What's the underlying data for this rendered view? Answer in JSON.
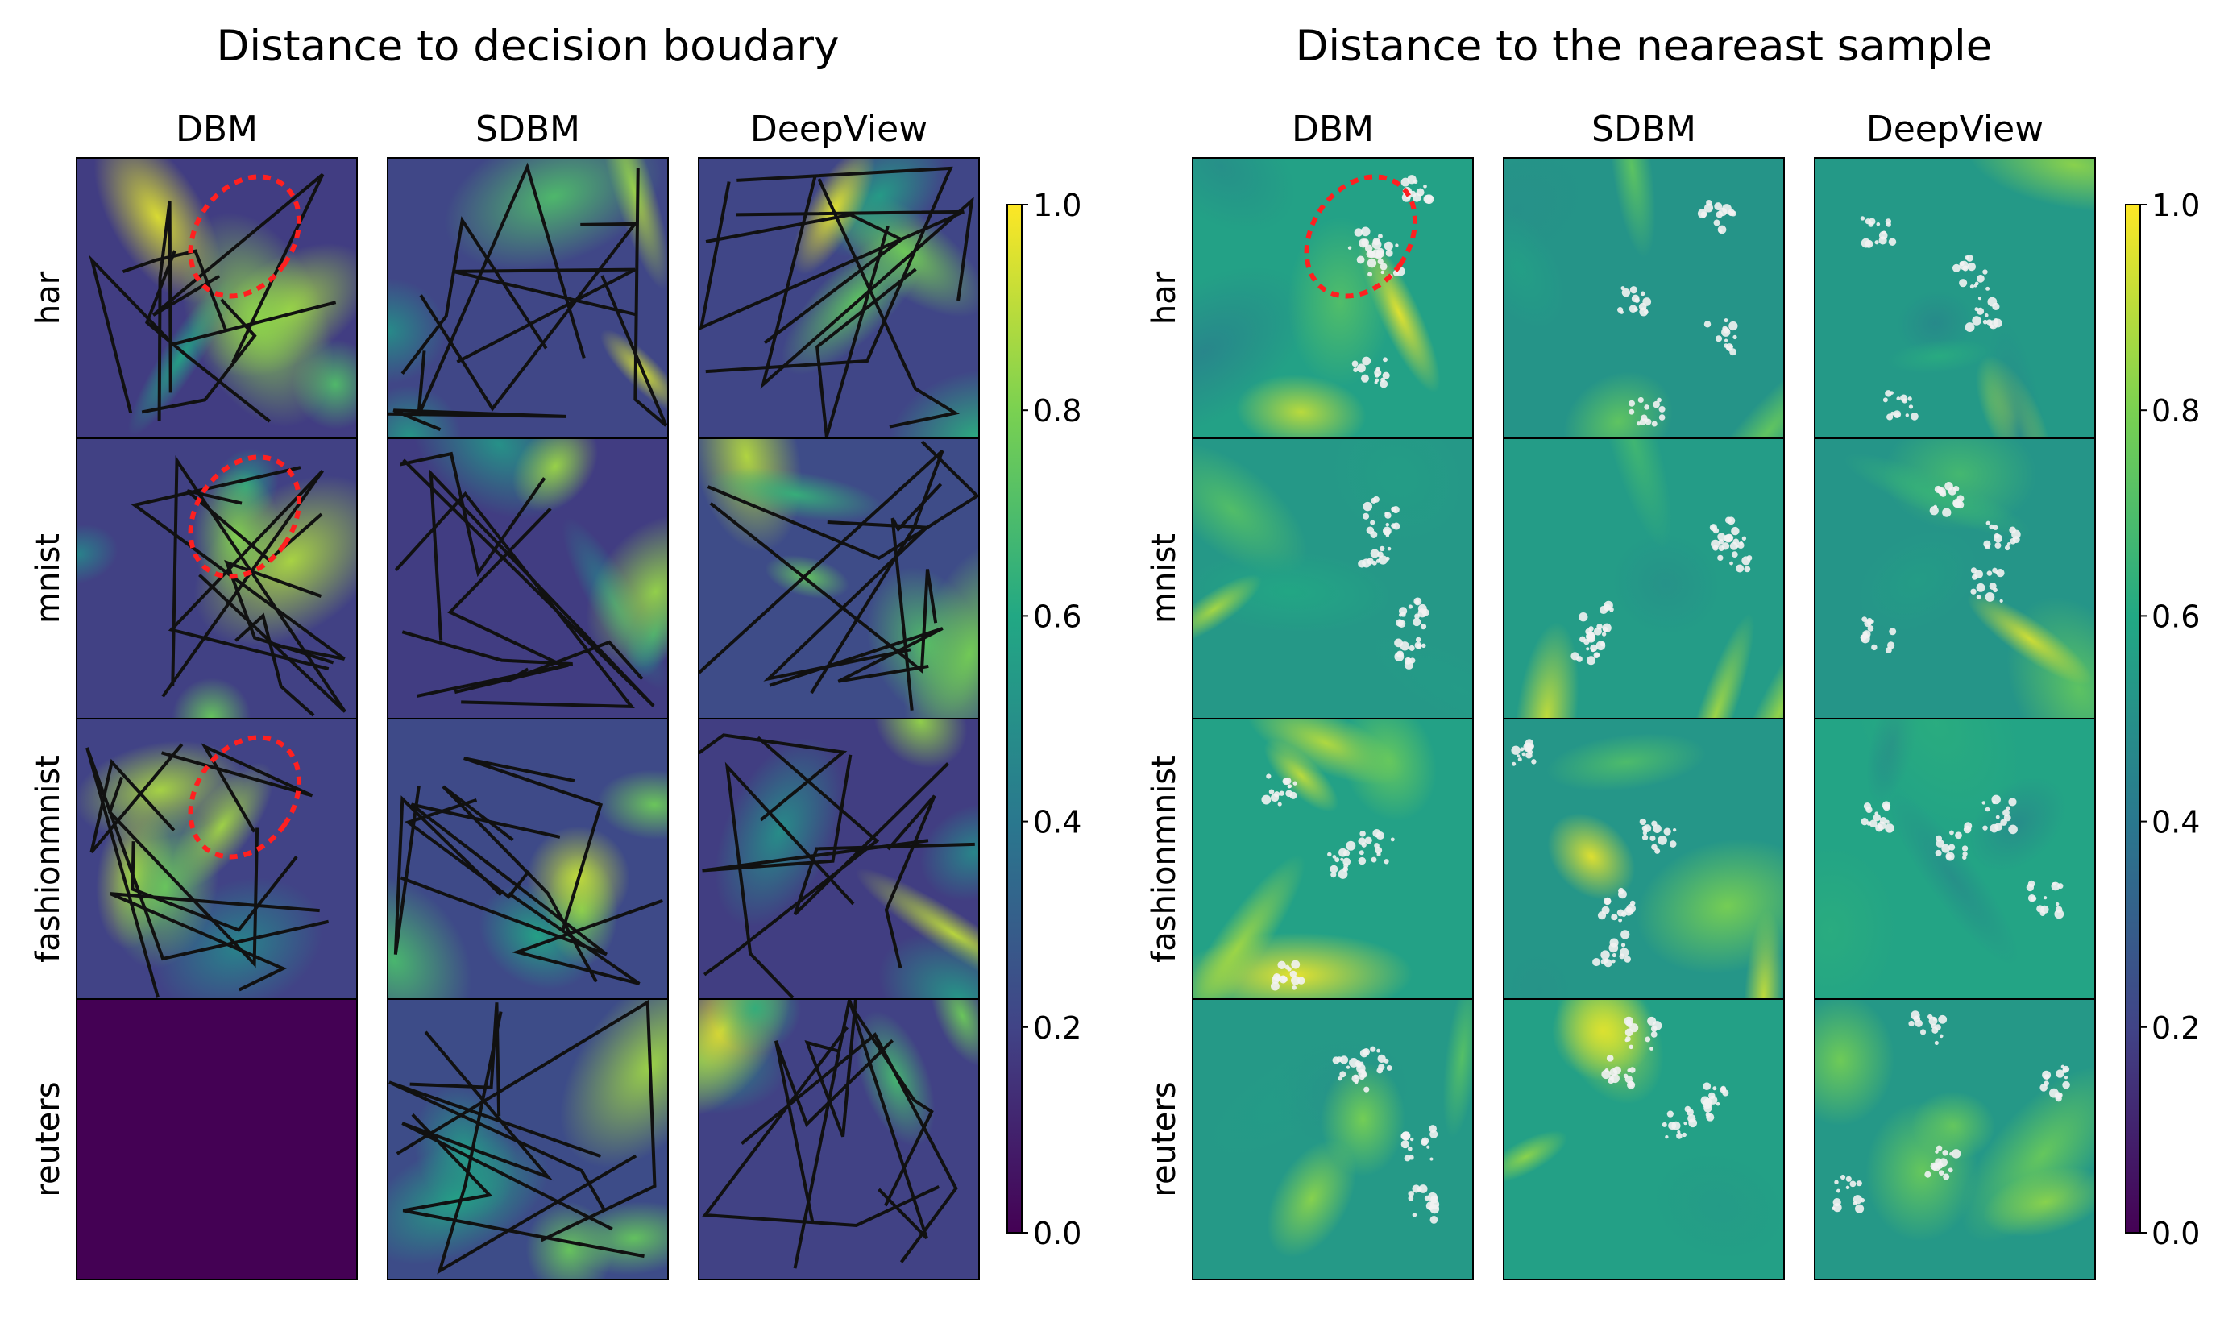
{
  "chart_data": {
    "type": "heatmap",
    "colormap": "viridis",
    "colormap_stops": [
      "#440154",
      "#414487",
      "#2a788e",
      "#22a884",
      "#7ad151",
      "#fde725"
    ],
    "value_range": [
      0,
      1
    ],
    "colorbar_ticks": [
      "0.0",
      "0.2",
      "0.4",
      "0.6",
      "0.8",
      "1.0"
    ],
    "rows": [
      "har",
      "mnist",
      "fashionmnist",
      "reuters"
    ],
    "columns": [
      "DBM",
      "SDBM",
      "DeepView"
    ],
    "highlight_color": "#ff2020",
    "panels": [
      {
        "title": "Distance to decision boudary",
        "background_level": 0.22,
        "boundaries": true,
        "uniform_cells": [
          [
            3,
            0,
            0.0
          ]
        ],
        "highlights": [
          [
            0,
            0
          ],
          [
            1,
            0
          ],
          [
            2,
            0
          ]
        ]
      },
      {
        "title": "Distance to the neareast sample",
        "background_level": 0.55,
        "boundaries": false,
        "samples": true,
        "uniform_cells": [],
        "highlights": [
          [
            0,
            0
          ]
        ]
      }
    ]
  }
}
